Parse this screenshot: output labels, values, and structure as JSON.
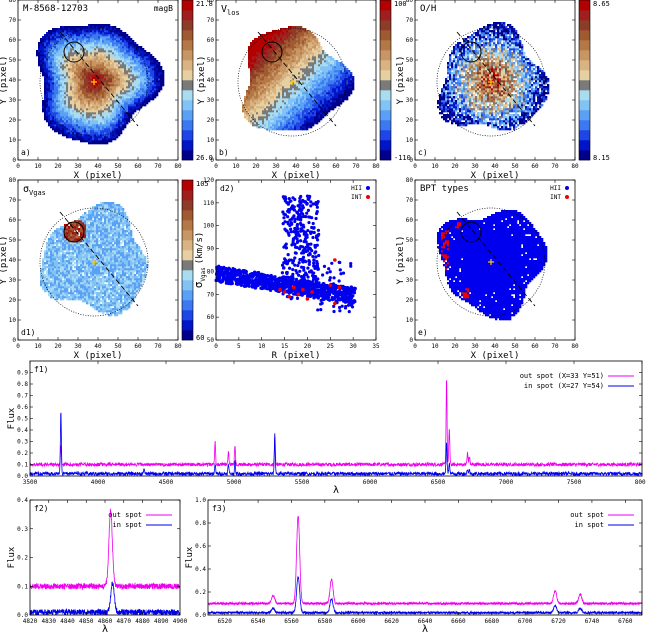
{
  "chart_data": [
    {
      "panel": "a",
      "type": "heatmap",
      "panel_label": "a)",
      "title": "M-8568-12703",
      "title_right": "magB",
      "xlabel": "X (pixel)",
      "ylabel": "Y (pixel)",
      "xlim": [
        0,
        80
      ],
      "ylim": [
        0,
        80
      ],
      "xticks": [
        0,
        10,
        20,
        30,
        40,
        50,
        60,
        70,
        80
      ],
      "yticks": [
        0,
        10,
        20,
        30,
        40,
        50,
        60,
        70,
        80
      ],
      "colorbar": {
        "max_label": "21.8",
        "min_label": "26.0",
        "min": 26.0,
        "max": 21.8
      },
      "center": [
        38,
        39
      ],
      "radius": 27,
      "spot": {
        "x": 28,
        "y": 54,
        "r": 5
      },
      "diagonal": [
        [
          21,
          64
        ],
        [
          60,
          17
        ]
      ]
    },
    {
      "panel": "b",
      "type": "heatmap",
      "panel_label": "b)",
      "title": "V_los",
      "title_main": "V",
      "title_sub": "los",
      "xlabel": "X (pixel)",
      "ylabel": "Y (pixel)",
      "xlim": [
        0,
        80
      ],
      "ylim": [
        0,
        80
      ],
      "xticks": [
        0,
        10,
        20,
        30,
        40,
        50,
        60,
        70,
        80
      ],
      "yticks": [
        0,
        10,
        20,
        30,
        40,
        50,
        60,
        70,
        80
      ],
      "colorbar": {
        "max_label": "100",
        "min_label": "-110",
        "min": -110,
        "max": 100
      },
      "center": [
        38,
        39
      ],
      "radius": 27,
      "spot": {
        "x": 28,
        "y": 54,
        "r": 5
      },
      "diagonal": [
        [
          21,
          64
        ],
        [
          60,
          17
        ]
      ]
    },
    {
      "panel": "c",
      "type": "heatmap",
      "panel_label": "c)",
      "title": "O/H",
      "xlabel": "X (pixel)",
      "ylabel": "Y (pixel)",
      "xlim": [
        0,
        80
      ],
      "ylim": [
        0,
        80
      ],
      "xticks": [
        0,
        10,
        20,
        30,
        40,
        50,
        60,
        70,
        80
      ],
      "yticks": [
        0,
        10,
        20,
        30,
        40,
        50,
        60,
        70,
        80
      ],
      "colorbar": {
        "max_label": "8.65",
        "min_label": "8.15",
        "min": 8.15,
        "max": 8.65
      },
      "center": [
        38,
        39
      ],
      "radius": 27,
      "spot": {
        "x": 28,
        "y": 54,
        "r": 5
      },
      "diagonal": [
        [
          21,
          64
        ],
        [
          60,
          17
        ]
      ]
    },
    {
      "panel": "d1",
      "type": "heatmap",
      "panel_label": "d1)",
      "title": "σ_Vgas",
      "title_main": "σ",
      "title_sub": "Vgas",
      "xlabel": "X (pixel)",
      "ylabel": "Y (pixel)",
      "xlim": [
        0,
        80
      ],
      "ylim": [
        0,
        80
      ],
      "xticks": [
        0,
        10,
        20,
        30,
        40,
        50,
        60,
        70,
        80
      ],
      "yticks": [
        0,
        10,
        20,
        30,
        40,
        50,
        60,
        70,
        80
      ],
      "colorbar": {
        "max_label": "105",
        "min_label": "60",
        "min": 60,
        "max": 105
      },
      "center": [
        38,
        39
      ],
      "radius": 27,
      "spot": {
        "x": 28,
        "y": 54,
        "r": 5
      },
      "diagonal": [
        [
          21,
          64
        ],
        [
          60,
          17
        ]
      ]
    },
    {
      "panel": "d2",
      "type": "scatter",
      "panel_label": "d2)",
      "xlabel": "R (pixel)",
      "ylabel": "σ_Vgas (km/s)",
      "ylabel_main": "σ",
      "ylabel_sub": "Vgas",
      "ylabel_unit": "(km/s)",
      "xlim": [
        0,
        35
      ],
      "ylim": [
        50,
        120
      ],
      "xticks": [
        0,
        5,
        10,
        15,
        20,
        25,
        30,
        35
      ],
      "yticks": [
        50,
        60,
        70,
        80,
        90,
        100,
        110,
        120
      ],
      "legend": [
        "HII",
        "INT"
      ],
      "legend_position": "top-right",
      "series": [
        {
          "name": "HII",
          "color": "#0000ee",
          "note_shape": "cloud declining from ~80 at R=0 to ~70 at R=30; vertical plume 70-113 at R=15-22"
        },
        {
          "name": "INT",
          "color": "#ee0000",
          "points": [
            [
              15,
              71
            ],
            [
              16,
              69
            ],
            [
              17,
              73
            ],
            [
              18,
              70
            ],
            [
              19,
              72
            ],
            [
              20,
              68
            ],
            [
              25,
              74
            ],
            [
              26,
              66
            ],
            [
              27,
              73
            ],
            [
              14,
              72
            ],
            [
              21,
              71
            ],
            [
              26,
              85
            ]
          ]
        }
      ]
    },
    {
      "panel": "e",
      "type": "heatmap",
      "panel_label": "e)",
      "title": "BPT types",
      "xlabel": "X (pixel)",
      "ylabel": "Y (pixel)",
      "xlim": [
        0,
        80
      ],
      "ylim": [
        0,
        80
      ],
      "xticks": [
        0,
        10,
        20,
        30,
        40,
        50,
        60,
        70,
        80
      ],
      "yticks": [
        0,
        10,
        20,
        30,
        40,
        50,
        60,
        70,
        80
      ],
      "legend": [
        "HII",
        "INT"
      ],
      "legend_colors": [
        "#0000ee",
        "#ee0000"
      ],
      "center": [
        38,
        39
      ],
      "radius": 27,
      "spot": {
        "x": 28,
        "y": 54,
        "r": 5
      },
      "diagonal": [
        [
          21,
          64
        ],
        [
          60,
          17
        ]
      ]
    },
    {
      "panel": "f1",
      "type": "line",
      "panel_label": "f1)",
      "xlabel": "λ",
      "ylabel": "Flux",
      "xlim": [
        3500,
        8000
      ],
      "ylim": [
        0,
        1.0
      ],
      "xticks": [
        3500,
        4000,
        4500,
        5000,
        5500,
        6000,
        6500,
        7000,
        7500,
        8000
      ],
      "yticks": [
        0,
        0.1,
        0.2,
        0.3,
        0.4,
        0.5,
        0.6,
        0.7,
        0.8,
        0.9
      ],
      "legend_position": "top-right",
      "series": [
        {
          "name": "out spot (X=33 Y=51)",
          "color": "#ee00ee",
          "baseline": 0.1,
          "peaks": [
            [
              3727,
              0.26
            ],
            [
              4861,
              0.3
            ],
            [
              4959,
              0.22
            ],
            [
              5007,
              0.27
            ],
            [
              5300,
              0.33
            ],
            [
              6563,
              0.86
            ],
            [
              6583,
              0.42
            ],
            [
              6717,
              0.2
            ],
            [
              6731,
              0.17
            ]
          ]
        },
        {
          "name": "in spot (X=27 Y=54)",
          "color": "#0000ee",
          "baseline": 0.02,
          "peaks": [
            [
              3727,
              0.56
            ],
            [
              4340,
              0.06
            ],
            [
              4861,
              0.1
            ],
            [
              4959,
              0.1
            ],
            [
              5007,
              0.12
            ],
            [
              5300,
              0.36
            ],
            [
              6563,
              0.3
            ],
            [
              6583,
              0.12
            ],
            [
              6717,
              0.06
            ],
            [
              6731,
              0.05
            ]
          ]
        }
      ]
    },
    {
      "panel": "f2",
      "type": "line",
      "panel_label": "f2)",
      "xlabel": "λ",
      "ylabel": "Flux",
      "xlim": [
        4820,
        4900
      ],
      "ylim": [
        0,
        0.4
      ],
      "xticks": [
        4820,
        4830,
        4840,
        4850,
        4860,
        4870,
        4880,
        4890,
        4900
      ],
      "yticks": [
        0,
        0.1,
        0.2,
        0.3,
        0.4
      ],
      "legend_position": "top-right",
      "series": [
        {
          "name": "out spot",
          "color": "#ee00ee",
          "baseline": 0.1,
          "peaks": [
            [
              4863,
              0.36
            ]
          ]
        },
        {
          "name": "in spot",
          "color": "#0000ee",
          "baseline": 0.01,
          "peaks": [
            [
              4864,
              0.11
            ]
          ]
        }
      ]
    },
    {
      "panel": "f3",
      "type": "line",
      "panel_label": "f3)",
      "xlabel": "λ",
      "ylabel": "Flux",
      "xlim": [
        6510,
        6770
      ],
      "ylim": [
        0,
        1.0
      ],
      "xticks": [
        6520,
        6540,
        6560,
        6580,
        6600,
        6620,
        6640,
        6660,
        6680,
        6700,
        6720,
        6740,
        6760
      ],
      "yticks": [
        0,
        0.2,
        0.4,
        0.6,
        0.8,
        1.0
      ],
      "legend_position": "top-right",
      "series": [
        {
          "name": "out spot",
          "color": "#ee00ee",
          "baseline": 0.1,
          "peaks": [
            [
              6549,
              0.17
            ],
            [
              6564,
              0.86
            ],
            [
              6584,
              0.31
            ],
            [
              6718,
              0.21
            ],
            [
              6733,
              0.18
            ]
          ]
        },
        {
          "name": "in spot",
          "color": "#0000ee",
          "baseline": 0.02,
          "peaks": [
            [
              6549,
              0.06
            ],
            [
              6564,
              0.33
            ],
            [
              6584,
              0.14
            ],
            [
              6718,
              0.08
            ],
            [
              6733,
              0.06
            ]
          ]
        }
      ]
    }
  ]
}
